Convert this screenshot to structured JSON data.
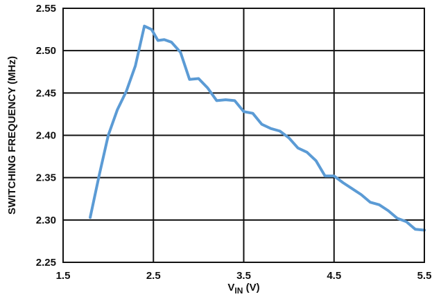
{
  "chart_data": {
    "type": "line",
    "title": "",
    "xlabel": {
      "main": "V",
      "subscript": "IN",
      "suffix": " (V)"
    },
    "ylabel": "SWITCHING FREQUENCY (MHz)",
    "xlim": [
      1.5,
      5.5
    ],
    "ylim": [
      2.25,
      2.55
    ],
    "xticks": [
      1.5,
      2.5,
      3.5,
      4.5,
      5.5
    ],
    "xtick_labels": [
      "1.5",
      "2.5",
      "3.5",
      "4.5",
      "5.5"
    ],
    "yticks": [
      2.25,
      2.3,
      2.35,
      2.4,
      2.45,
      2.5,
      2.55
    ],
    "ytick_labels": [
      "2.25",
      "2.30",
      "2.35",
      "2.40",
      "2.45",
      "2.50",
      "2.55"
    ],
    "grid": true,
    "series": [
      {
        "color": "#5b9bd5",
        "x": [
          1.8,
          1.9,
          2.0,
          2.1,
          2.2,
          2.3,
          2.4,
          2.48,
          2.55,
          2.62,
          2.7,
          2.8,
          2.9,
          3.0,
          3.1,
          3.2,
          3.3,
          3.4,
          3.5,
          3.6,
          3.7,
          3.8,
          3.9,
          4.0,
          4.1,
          4.2,
          4.3,
          4.4,
          4.5,
          4.6,
          4.7,
          4.8,
          4.9,
          5.0,
          5.1,
          5.2,
          5.3,
          5.4,
          5.5
        ],
        "y": [
          2.303,
          2.353,
          2.4,
          2.43,
          2.452,
          2.482,
          2.529,
          2.525,
          2.512,
          2.513,
          2.51,
          2.498,
          2.466,
          2.467,
          2.456,
          2.441,
          2.442,
          2.441,
          2.428,
          2.426,
          2.413,
          2.408,
          2.405,
          2.397,
          2.385,
          2.38,
          2.37,
          2.352,
          2.352,
          2.344,
          2.337,
          2.33,
          2.321,
          2.318,
          2.311,
          2.302,
          2.298,
          2.289,
          2.288
        ]
      }
    ]
  }
}
